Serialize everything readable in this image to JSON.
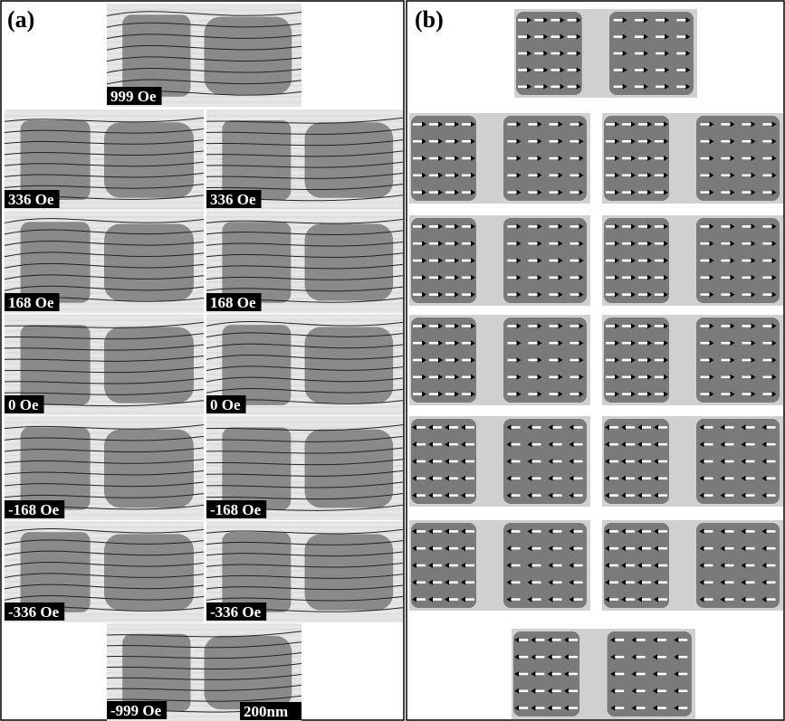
{
  "panel_a": {
    "label": "(a)",
    "frames": [
      "999 Oe",
      "336 Oe",
      "336 Oe",
      "168 Oe",
      "168 Oe",
      "0 Oe",
      "0 Oe",
      "-168 Oe",
      "-168 Oe",
      "-336 Oe",
      "-336 Oe",
      "-999 Oe"
    ],
    "scale_bar": "200nm"
  },
  "panel_b": {
    "label": "(b)"
  }
}
